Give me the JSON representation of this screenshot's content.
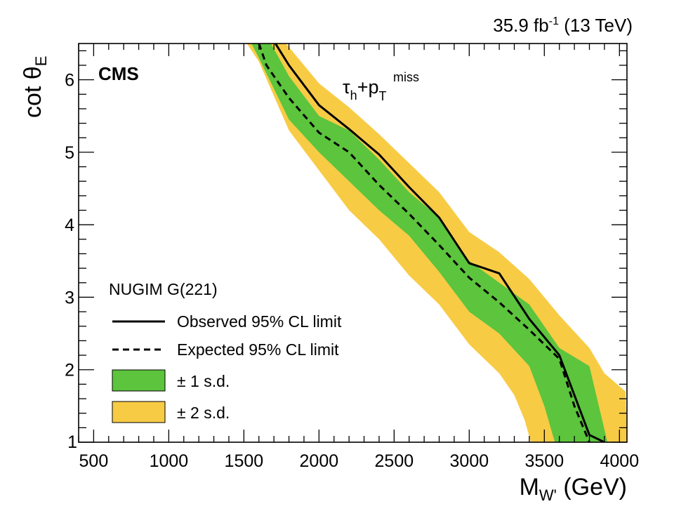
{
  "chart_data": {
    "type": "area",
    "title": "",
    "lumi_label": {
      "value": "35.9 fb",
      "sup": "-1",
      "rest": " (13 TeV)"
    },
    "experiment_label": "CMS",
    "channel_label": {
      "tau": "τ",
      "tau_sub": "h",
      "plus": "+p",
      "p_sub": "T",
      "p_sup": "miss"
    },
    "xlabel": {
      "main": "M",
      "sub": "W'",
      "rest": " (GeV)"
    },
    "ylabel": {
      "main": "cot θ",
      "sub": "E"
    },
    "xlim": [
      400,
      4050
    ],
    "ylim": [
      1,
      6.5
    ],
    "xticks": [
      500,
      1000,
      1500,
      2000,
      2500,
      3000,
      3500,
      4000
    ],
    "yticks": [
      1,
      2,
      3,
      4,
      5,
      6
    ],
    "colors": {
      "observed": "#000000",
      "expected": "#000000",
      "one_sigma": "#5cc43d",
      "two_sigma": "#f8cb45"
    },
    "legend": {
      "header": "NUGIM G(221)",
      "position": "bottom-left",
      "entries": [
        {
          "key": "observed",
          "label": "Observed 95% CL limit"
        },
        {
          "key": "expected",
          "label": "Expected 95% CL limit"
        },
        {
          "key": "one_sigma",
          "label": "± 1 s.d."
        },
        {
          "key": "two_sigma",
          "label": "± 2 s.d."
        }
      ]
    },
    "series": [
      {
        "key": "observed",
        "style": "solid",
        "x": [
          1710,
          1800,
          2000,
          2200,
          2400,
          2600,
          2800,
          3000,
          3200,
          3400,
          3600,
          3800,
          3900
        ],
        "y": [
          6.5,
          6.2,
          5.65,
          5.32,
          4.97,
          4.52,
          4.1,
          3.47,
          3.33,
          2.7,
          2.2,
          1.1,
          1.0
        ]
      },
      {
        "key": "expected",
        "style": "dashed",
        "x": [
          1600,
          1650,
          1800,
          2000,
          2200,
          2400,
          2600,
          2800,
          3000,
          3200,
          3400,
          3600,
          3700,
          3800
        ],
        "y": [
          6.5,
          6.2,
          5.75,
          5.27,
          5.0,
          4.55,
          4.15,
          3.72,
          3.27,
          2.93,
          2.55,
          2.15,
          1.5,
          1.0
        ]
      },
      {
        "key": "one_sigma",
        "style": "band",
        "upper": {
          "x": [
            1680,
            1800,
            2000,
            2200,
            2400,
            2600,
            2800,
            3000,
            3200,
            3400,
            3600,
            3800,
            3920
          ],
          "y": [
            6.5,
            6.05,
            5.5,
            5.3,
            4.9,
            4.45,
            4.1,
            3.5,
            3.2,
            2.9,
            2.3,
            2.05,
            1.0
          ]
        },
        "lower": {
          "x": [
            1550,
            1600,
            1800,
            2000,
            2200,
            2400,
            2600,
            2800,
            3000,
            3200,
            3400,
            3500,
            3570
          ],
          "y": [
            6.5,
            6.3,
            5.45,
            5.0,
            4.6,
            4.2,
            3.85,
            3.35,
            2.8,
            2.5,
            2.05,
            1.5,
            1.0
          ]
        }
      },
      {
        "key": "two_sigma",
        "style": "band",
        "upper": {
          "x": [
            1780,
            2000,
            2200,
            2400,
            2600,
            2800,
            3000,
            3200,
            3400,
            3600,
            3800,
            3900,
            4040,
            4050
          ],
          "y": [
            6.5,
            5.95,
            5.62,
            5.25,
            4.85,
            4.45,
            3.9,
            3.62,
            3.25,
            2.75,
            2.3,
            1.95,
            1.7,
            1.0
          ]
        },
        "lower": {
          "x": [
            1520,
            1600,
            1800,
            2000,
            2200,
            2400,
            2600,
            2800,
            3000,
            3200,
            3300,
            3370,
            3410
          ],
          "y": [
            6.5,
            6.25,
            5.3,
            4.75,
            4.2,
            3.8,
            3.3,
            2.9,
            2.35,
            1.95,
            1.65,
            1.3,
            1.0
          ]
        }
      }
    ]
  }
}
